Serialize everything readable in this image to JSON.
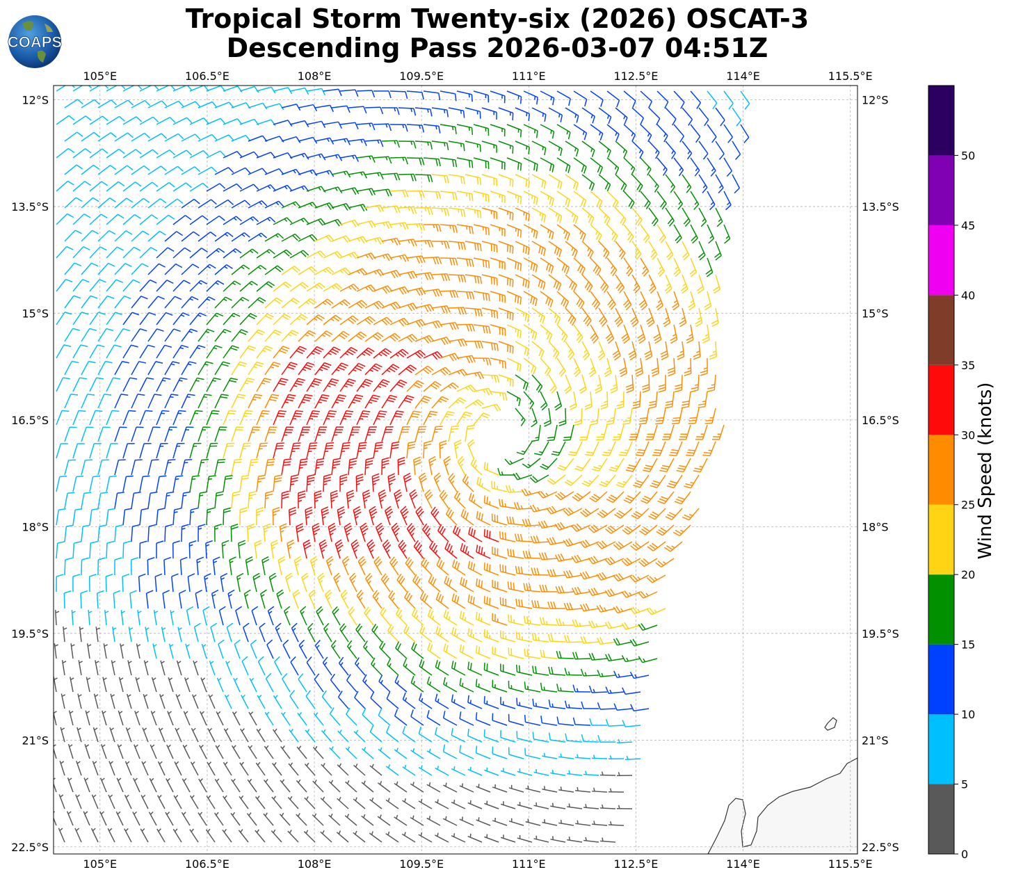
{
  "title": {
    "line1": "Tropical Storm Twenty-six (2026) OSCAT-3",
    "line2": "Descending Pass 2026-03-07 04:51Z"
  },
  "logo": {
    "text": "COAPS",
    "icon": "globe-icon"
  },
  "map": {
    "lon_range": [
      104.35,
      115.6
    ],
    "lat_range": [
      -22.6,
      -11.8
    ],
    "lon_ticks": [
      "105°E",
      "106.5°E",
      "108°E",
      "109.5°E",
      "111°E",
      "112.5°E",
      "114°E",
      "115.5°E"
    ],
    "lon_tick_values": [
      105,
      106.5,
      108,
      109.5,
      111,
      112.5,
      114,
      115.5
    ],
    "lat_ticks": [
      "12°S",
      "13.5°S",
      "15°S",
      "16.5°S",
      "18°S",
      "19.5°S",
      "21°S",
      "22.5°S"
    ],
    "lat_tick_values": [
      -12,
      -13.5,
      -15,
      -16.5,
      -18,
      -19.5,
      -21,
      -22.5
    ],
    "grid": true,
    "storm_center": {
      "lon": 110.6,
      "lat": -16.7
    },
    "land": "coastline at lower right (NW Australia)"
  },
  "colorbar": {
    "label": "Wind Speed (knots)",
    "bounds": [
      0,
      5,
      10,
      15,
      20,
      25,
      30,
      35,
      40,
      45,
      50,
      55
    ],
    "tick_labels": [
      "0",
      "5",
      "10",
      "15",
      "20",
      "25",
      "30",
      "35",
      "40",
      "45",
      "50"
    ],
    "colors": [
      "#595959",
      "#00bfff",
      "#0040ff",
      "#009000",
      "#ffd414",
      "#ff8c00",
      "#ff0a0a",
      "#7f3c28",
      "#f000f0",
      "#8000b4",
      "#2b0060"
    ]
  }
}
